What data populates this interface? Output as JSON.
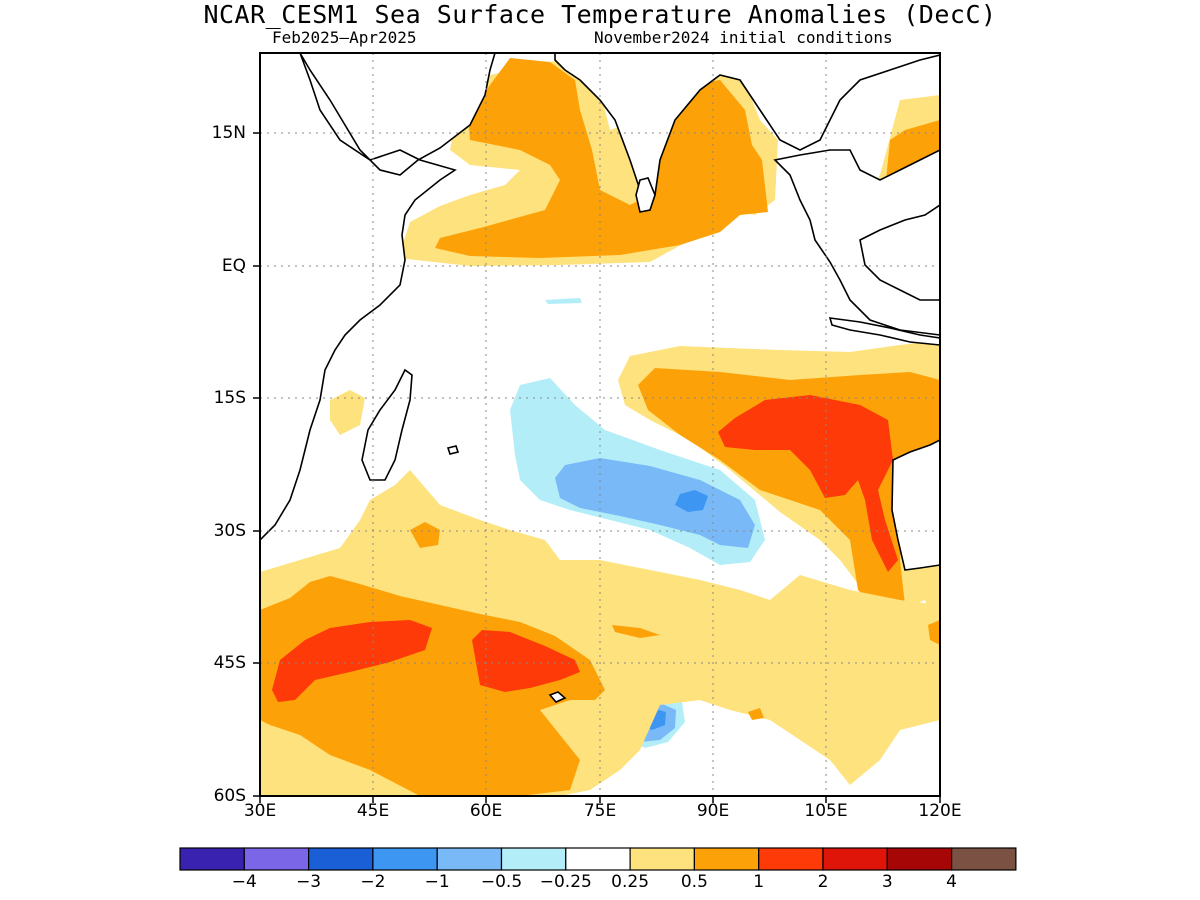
{
  "title": "NCAR_CESM1 Sea Surface Temperature Anomalies (DecC)",
  "subtitle_left": "Feb2025–Apr2025",
  "subtitle_right": "November2024 initial conditions",
  "map": {
    "region": "Indian Ocean",
    "lon_range": [
      30,
      120
    ],
    "lat_range": [
      -60,
      24
    ],
    "y_ticks": [
      "15N",
      "EQ",
      "15S",
      "30S",
      "45S",
      "60S"
    ],
    "x_ticks": [
      "30E",
      "45E",
      "60E",
      "75E",
      "90E",
      "105E",
      "120E"
    ],
    "gridlines": "dotted",
    "features": [
      "Arabian Sea warm anomaly",
      "Bay of Bengal warm anomaly",
      "Southeast Indian Ocean warm anomaly",
      "South Indian Ocean cool anomaly",
      "Southern Ocean warm anomaly"
    ]
  },
  "colorbar": {
    "colors": [
      "#3a22b0",
      "#7c66e8",
      "#1a5fd6",
      "#3d96f2",
      "#79b9f7",
      "#b3eef8",
      "#ffffff",
      "#fde27d",
      "#fda108",
      "#fd3a08",
      "#de1508",
      "#a60606",
      "#7b5143"
    ],
    "labels": [
      "−4",
      "−3",
      "−2",
      "−1",
      "−0.5",
      "−0.25",
      "0.25",
      "0.5",
      "1",
      "2",
      "3",
      "4"
    ]
  }
}
